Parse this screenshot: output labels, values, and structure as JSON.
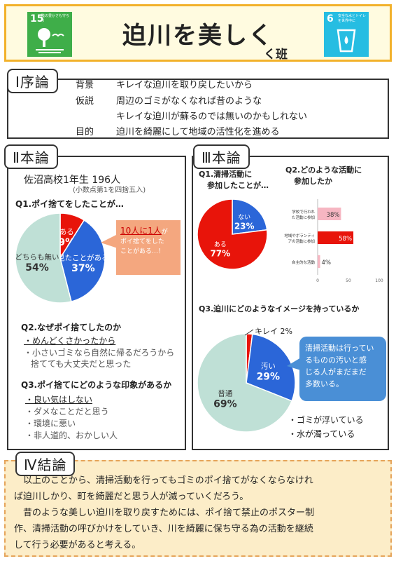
{
  "header": {
    "title": "迫川を美しく",
    "subtitle": "く班",
    "sdg15": {
      "number": "15",
      "text": "陸の豊かさも守ろう",
      "color": "#3fae49"
    },
    "sdg6": {
      "number": "6",
      "text": "安全な水とトイレを世界中に",
      "color": "#26bde2"
    }
  },
  "intro": {
    "heading": "Ⅰ序論",
    "background_label": "背景",
    "background_text": "キレイな迫川を取り戻したいから",
    "hypothesis_label": "仮説",
    "hypothesis_line1": "周辺のゴミがなくなれば昔のような",
    "hypothesis_line2": "キレイな迫川が蘇るのでは無いのかもしれない",
    "purpose_label": "目的",
    "purpose_text": "迫川を綺麗にして地域の活性化を進める"
  },
  "main": {
    "heading": "Ⅱ本論",
    "school": "佐沼高校1年生 196人",
    "rounding_note": "(小数点第1を四捨五入)",
    "q1_title": "Q1.ポイ捨てをしたことが…",
    "callout_highlight": "10人に1人",
    "callout_text1": "が",
    "callout_text2": "ポイ捨てをした",
    "callout_text3": "ことがある…！",
    "q2_title": "Q2.なぜポイ捨てしたのか",
    "q2_answers": [
      "・めんどくさかったから",
      "・小さいゴミなら自然に帰るだろうから",
      "捨てても大丈夫だと思った"
    ],
    "q3_title": "Q3.ポイ捨てにどのような印象があるか",
    "q3_answers": [
      "・良い気はしない",
      "・ダメなことだと思う",
      "・環境に悪い",
      "・非人道的、おかしい人"
    ]
  },
  "survey": {
    "heading": "Ⅲ本論",
    "q1_title_line1": "Q1.清掃活動に",
    "q1_title_line2": "参加したことが…",
    "q2_title_line1": "Q2.どのような活動に",
    "q2_title_line2": "参加したか",
    "q3_title": "Q3.迫川にどのようなイメージを持っているか",
    "bubble_text": [
      "清掃活動は行ってい",
      "るものの汚いと感",
      "じる人がまだまだ",
      "多数いる。"
    ],
    "observations": [
      "・ゴミが浮いている",
      "・水が濁っている"
    ]
  },
  "conclusion": {
    "heading": "Ⅳ結論",
    "para1_line1": "　以上のことから、清掃活動を行ってもゴミのポイ捨てがなくならなけれ",
    "para1_line2": "ば迫川しかり、町を綺麗だと思う人が減っていくだろう。",
    "para2_line1": "　昔のような美しい迫川を取り戻すためには、ポイ捨て禁止のポスター制",
    "para2_line2": "作、清掃活動の呼びかけをしていき、川を綺麗に保ち守る為の活動を継続",
    "para2_line3": "して行う必要があると考える。"
  },
  "chart_data": [
    {
      "type": "pie",
      "title": "Q1.ポイ捨てをしたことが…",
      "labels": [
        "ある",
        "見たことがある",
        "どちらも無い"
      ],
      "values": [
        9,
        37,
        54
      ],
      "display": [
        "9%",
        "37%",
        "54%"
      ],
      "colors": [
        "#e8140a",
        "#2b66d8",
        "#bfe0d6"
      ]
    },
    {
      "type": "pie",
      "title": "Q1.清掃活動に参加したことが…",
      "labels": [
        "ない",
        "ある"
      ],
      "values": [
        23,
        77
      ],
      "display": [
        "23%",
        "77%"
      ],
      "colors": [
        "#2b66d8",
        "#e8140a"
      ]
    },
    {
      "type": "bar",
      "orientation": "horizontal",
      "title": "Q2.どのような活動に参加したか",
      "categories": [
        "学校で行われた活動に参加",
        "地域やボランティアの活動に参加",
        "自主的な活動"
      ],
      "values": [
        38,
        58,
        4
      ],
      "display": [
        "38%",
        "58%",
        "4%"
      ],
      "colors": [
        "#f6b6c2",
        "#e8140a",
        "#f6b6c2"
      ],
      "xlim": [
        0,
        100
      ],
      "xticks": [
        "0",
        "50",
        "100"
      ]
    },
    {
      "type": "pie",
      "title": "Q3.迫川にどのようなイメージを持っているか",
      "labels": [
        "キレイ",
        "汚い",
        "普通"
      ],
      "values": [
        2,
        29,
        69
      ],
      "display": [
        "2%",
        "29%",
        "69%"
      ],
      "colors": [
        "#e8140a",
        "#2b66d8",
        "#bfe0d6"
      ]
    }
  ]
}
